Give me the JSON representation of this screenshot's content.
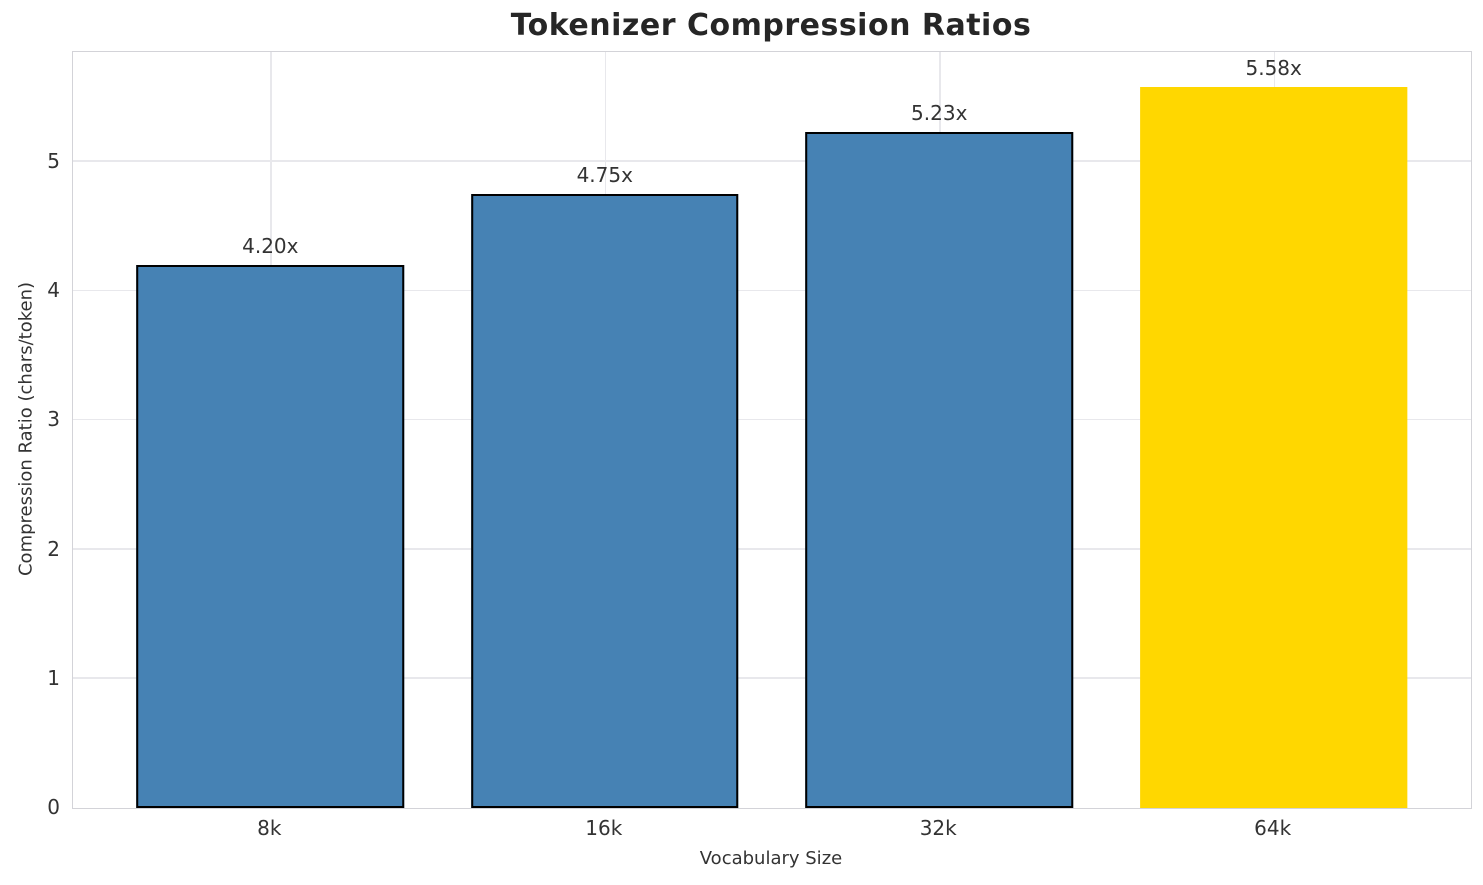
{
  "title": "Tokenizer Compression Ratios",
  "axes": {
    "x_label": "Vocabulary Size",
    "y_label": "Compression Ratio (chars/token)"
  },
  "colors": {
    "bar_default": "#4682b4",
    "bar_highlight": "#ffd700",
    "bar_edge": "#000000",
    "grid": "#e8e8ec",
    "spine": "#d3d3d8",
    "text": "#333333",
    "title_text": "#262626"
  },
  "chart_data": {
    "type": "bar",
    "title": "Tokenizer Compression Ratios",
    "xlabel": "Vocabulary Size",
    "ylabel": "Compression Ratio (chars/token)",
    "categories": [
      "8k",
      "16k",
      "32k",
      "64k"
    ],
    "values": [
      4.2,
      4.75,
      5.23,
      5.58
    ],
    "bar_labels": [
      "4.20x",
      "4.75x",
      "5.23x",
      "5.58x"
    ],
    "bar_colors": [
      "#4682b4",
      "#4682b4",
      "#4682b4",
      "#ffd700"
    ],
    "bar_edge_colors": [
      "#000000",
      "#000000",
      "#000000",
      "#ffd700"
    ],
    "ylim": [
      0,
      5.85
    ],
    "y_ticks": [
      0,
      1,
      2,
      3,
      4,
      5
    ],
    "grid": true,
    "legend": false
  }
}
